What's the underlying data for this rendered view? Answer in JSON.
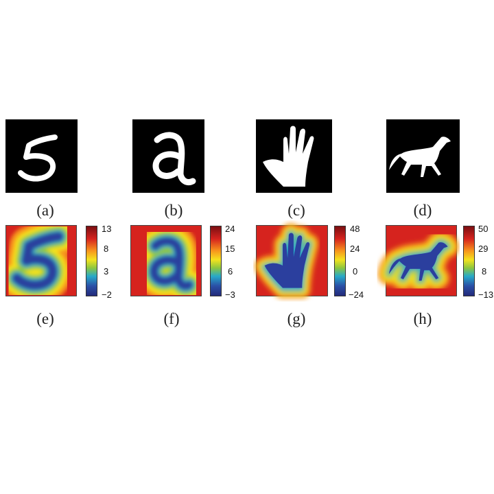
{
  "panels": {
    "a": {
      "caption": "(a)"
    },
    "b": {
      "caption": "(b)"
    },
    "c": {
      "caption": "(c)"
    },
    "d": {
      "caption": "(d)"
    },
    "e": {
      "caption": "(e)",
      "ticks": [
        "13",
        "8",
        "3",
        "−2"
      ]
    },
    "f": {
      "caption": "(f)",
      "ticks": [
        "24",
        "15",
        "6",
        "−3"
      ]
    },
    "g": {
      "caption": "(g)",
      "ticks": [
        "48",
        "24",
        "0",
        "−24"
      ]
    },
    "h": {
      "caption": "(h)",
      "ticks": [
        "50",
        "29",
        "8",
        "−13"
      ]
    }
  },
  "colors": {
    "background": "#ffffff",
    "shape_fill": "#ffffff",
    "panel_bg": "#000000",
    "map_outer": "#d6231e",
    "map_inner": "#2b3f9e"
  }
}
